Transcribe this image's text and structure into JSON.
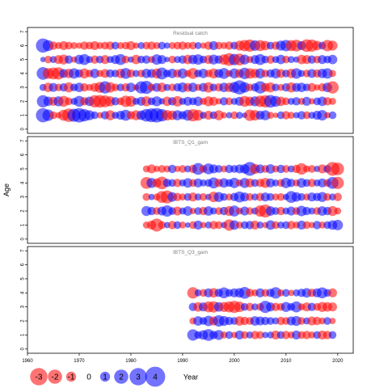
{
  "chart_data": {
    "type": "bubble",
    "ylabel": "Age",
    "xlabel": "Year",
    "xlim": [
      1960,
      2023
    ],
    "xticks": [
      1960,
      1970,
      1980,
      1990,
      2000,
      2010,
      2020
    ],
    "positive_color": "#0000FF",
    "negative_color": "#FF0000",
    "legend": {
      "values": [
        -3,
        -2,
        -1,
        0,
        1,
        2,
        3,
        4
      ],
      "title": "Year"
    },
    "panels": [
      {
        "title": "Residual catch",
        "years": [
          1963,
          2019
        ],
        "ages": [
          1,
          2,
          3,
          4,
          5,
          6
        ],
        "yticks": [
          0,
          1,
          2,
          3,
          4,
          5,
          6,
          7
        ],
        "ylim": [
          -0.3,
          7.3
        ],
        "residuals": {
          "1": [
            2.0,
            1.3,
            -0.6,
            -0.4,
            -1.2,
            -1.8,
            1.7,
            2.1,
            1.5,
            1.0,
            0.6,
            -0.4,
            0.7,
            -1.0,
            0.5,
            0.8,
            1.2,
            -0.7,
            -1.0,
            0.9,
            1.6,
            1.9,
            2.1,
            1.5,
            -1.1,
            -0.9,
            1.0,
            0.7,
            1.2,
            -1.5,
            -1.2,
            0.5,
            -0.8,
            0.6,
            -1.0,
            -0.4,
            0.4,
            -0.6,
            0.5,
            0.3,
            -1.3,
            -1.1,
            0.8,
            1.0,
            -0.5,
            -0.3,
            0.6,
            -0.7,
            -0.5,
            0.4,
            0.7,
            -0.6,
            0.5,
            0.8,
            1.1,
            -0.4,
            0.6
          ],
          "2": [
            1.5,
            0.9,
            -0.8,
            1.0,
            -1.2,
            -0.6,
            0.5,
            1.2,
            -0.7,
            0.9,
            -1.5,
            -1.6,
            -1.4,
            -1.0,
            0.7,
            -0.6,
            -1.3,
            -1.2,
            0.5,
            0.8,
            -1.0,
            0.6,
            1.0,
            0.4,
            -0.9,
            0.7,
            -1.1,
            0.5,
            0.8,
            0.6,
            0.9,
            -0.5,
            -1.0,
            -0.8,
            -0.4,
            0.7,
            -0.6,
            0.5,
            0.8,
            -1.2,
            -0.9,
            1.0,
            -1.3,
            -1.5,
            1.6,
            1.2,
            -0.9,
            -0.6,
            0.5,
            0.7,
            -0.5,
            0.8,
            -0.4,
            0.6,
            0.9,
            -0.7,
            -0.5
          ],
          "3": [
            0.5,
            -0.9,
            0.8,
            -0.6,
            0.7,
            -1.0,
            0.6,
            0.9,
            -0.7,
            -0.5,
            -0.8,
            -1.2,
            1.5,
            -1.1,
            -0.6,
            0.6,
            -0.7,
            0.9,
            -0.4,
            1.5,
            1.7,
            -0.6,
            0.8,
            -0.9,
            0.5,
            -0.6,
            0.7,
            1.0,
            -0.8,
            0.9,
            -0.5,
            0.8,
            -1.1,
            0.6,
            -0.7,
            0.9,
            -0.9,
            1.2,
            2.0,
            1.1,
            -0.6,
            0.7,
            1.5,
            -0.8,
            -1.0,
            0.6,
            -0.5,
            0.7,
            -1.0,
            0.8,
            0.9,
            0.6,
            -0.8,
            -0.4,
            -0.7,
            0.9,
            -1.5
          ],
          "4": [
            1.6,
            -1.2,
            -1.4,
            -1.5,
            0.8,
            -0.9,
            1.1,
            0.7,
            -1.0,
            -0.6,
            0.9,
            -0.5,
            -0.8,
            0.7,
            0.6,
            -0.9,
            1.2,
            -0.7,
            0.5,
            -0.6,
            0.9,
            0.8,
            -1.0,
            1.4,
            0.6,
            0.9,
            -0.7,
            1.0,
            -0.5,
            -1.2,
            0.6,
            0.9,
            -0.6,
            -1.0,
            0.8,
            1.2,
            -0.5,
            1.0,
            -0.8,
            1.3,
            -1.1,
            -0.9,
            1.0,
            -0.6,
            0.7,
            1.0,
            -0.8,
            0.6,
            -0.9,
            1.1,
            0.5,
            -0.6,
            0.8,
            -0.7,
            0.9,
            1.1,
            -0.5
          ],
          "5": [
            0.3,
            -0.6,
            0.5,
            -0.8,
            -1.0,
            0.7,
            -0.4,
            0.9,
            1.2,
            0.5,
            -0.7,
            0.6,
            -0.8,
            0.5,
            0.8,
            1.2,
            -0.6,
            0.4,
            -0.9,
            0.6,
            0.7,
            -0.5,
            1.1,
            0.8,
            0.3,
            -0.6,
            0.5,
            0.7,
            -0.9,
            0.9,
            1.1,
            0.6,
            -0.8,
            1.0,
            0.7,
            -1.1,
            -1.6,
            1.3,
            -1.4,
            1.0,
            -0.5,
            0.8,
            1.2,
            0.6,
            -0.7,
            0.5,
            0.9,
            -0.6,
            0.5,
            0.4,
            -0.9,
            -0.8,
            0.7,
            -0.6,
            0.8,
            0.6,
            0.9
          ],
          "6": [
            2.0,
            1.2,
            -0.7,
            -0.5,
            -0.8,
            -0.6,
            -0.5,
            -0.4,
            -0.7,
            -0.6,
            -0.8,
            -0.5,
            -0.6,
            -0.7,
            0.6,
            -0.5,
            -0.6,
            -0.8,
            -0.4,
            0.5,
            -0.6,
            -0.7,
            -0.5,
            0.6,
            0.4,
            -0.5,
            -0.6,
            -0.7,
            -0.5,
            -0.6,
            0.5,
            -0.4,
            -0.7,
            0.8,
            -0.6,
            -0.5,
            -0.7,
            0.6,
            -1.0,
            -1.3,
            -1.5,
            1.1,
            -1.2,
            -0.9,
            0.6,
            -0.7,
            1.0,
            1.3,
            -1.2,
            -1.4,
            0.8,
            -1.6,
            -1.5,
            -0.9,
            0.6,
            -1.3,
            -1.0
          ]
        }
      },
      {
        "title": "IBTS_Q1_gam",
        "years": [
          1983,
          2020
        ],
        "ages": [
          1,
          2,
          3,
          4,
          5
        ],
        "yticks": [
          0,
          1,
          2,
          3,
          4,
          5,
          6,
          7
        ],
        "ylim": [
          -0.3,
          7.3
        ],
        "residuals": {
          "1": [
            -0.5,
            -0.8,
            -1.7,
            -0.6,
            0.4,
            -0.7,
            0.6,
            -0.5,
            0.3,
            -0.6,
            0.8,
            -0.4,
            0.5,
            -0.7,
            -0.6,
            0.4,
            -1.3,
            0.9,
            -0.5,
            0.6,
            0.7,
            -0.8,
            0.5,
            -0.4,
            0.9,
            -0.6,
            0.5,
            0.6,
            -0.7,
            -0.5,
            0.8,
            -0.6,
            -0.4,
            0.7,
            -0.5,
            0.6,
            0.9,
            1.1
          ],
          "2": [
            1.0,
            0.7,
            -0.6,
            0.8,
            1.3,
            0.6,
            -0.8,
            0.5,
            0.9,
            -0.4,
            0.6,
            -0.7,
            0.9,
            0.5,
            -0.6,
            0.7,
            -1.0,
            1.2,
            -0.5,
            0.8,
            -0.6,
            0.5,
            -1.3,
            -1.7,
            0.9,
            0.6,
            -0.7,
            0.5,
            0.8,
            -0.6,
            1.1,
            0.7,
            0.5,
            -0.6,
            0.9,
            0.7,
            -1.0,
            -0.5
          ],
          "3": [
            -0.6,
            0.4,
            -0.5,
            -1.4,
            -1.7,
            0.9,
            -0.7,
            -0.5,
            0.6,
            -0.8,
            0.5,
            -0.6,
            0.4,
            -1.1,
            1.0,
            0.6,
            -0.5,
            0.7,
            1.2,
            0.8,
            -0.6,
            0.5,
            -0.7,
            0.8,
            0.6,
            -0.5,
            -0.6,
            0.4,
            1.4,
            0.9,
            0.6,
            -0.5,
            0.8,
            0.7,
            1.0,
            -0.6,
            0.5,
            -0.7
          ],
          "4": [
            -1.4,
            1.0,
            -0.8,
            -1.6,
            0.7,
            0.6,
            -0.7,
            0.5,
            0.9,
            -0.6,
            0.8,
            0.5,
            0.6,
            1.2,
            -0.7,
            0.9,
            0.6,
            1.1,
            -0.5,
            1.0,
            -0.8,
            0.6,
            -0.7,
            -1.0,
            0.8,
            0.5,
            -0.6,
            1.1,
            0.7,
            -0.5,
            0.9,
            0.6,
            -0.7,
            0.5,
            0.8,
            -0.6,
            1.4,
            -1.5
          ],
          "5": [
            -0.5,
            -0.8,
            -0.4,
            -0.6,
            -0.5,
            0.7,
            -0.4,
            -0.6,
            0.5,
            -0.7,
            1.4,
            -0.6,
            1.2,
            0.8,
            0.6,
            -0.5,
            0.7,
            0.6,
            0.8,
            0.9,
            1.9,
            -1.0,
            0.8,
            -0.6,
            0.9,
            -0.5,
            0.7,
            -0.6,
            0.5,
            -0.7,
            -1.3,
            -0.5,
            -0.6,
            0.4,
            -0.8,
            0.6,
            -1.9,
            -1.6
          ]
        }
      },
      {
        "title": "IBTS_Q3_gam",
        "years": [
          1992,
          2019
        ],
        "ages": [
          1,
          2,
          3,
          4
        ],
        "yticks": [
          0,
          1,
          2,
          3,
          4,
          5,
          6,
          7
        ],
        "ylim": [
          -0.3,
          7.3
        ],
        "residuals": {
          "1": [
            1.3,
            0.6,
            0.9,
            1.4,
            0.7,
            1.0,
            -0.5,
            0.6,
            -0.4,
            0.8,
            -0.6,
            0.5,
            -0.7,
            -0.6,
            0.4,
            0.5,
            -0.8,
            0.6,
            -0.7,
            -0.5,
            0.8,
            -0.6,
            -0.7,
            -0.5,
            0.6,
            -0.8,
            -0.7,
            0.6
          ],
          "2": [
            -0.5,
            0.9,
            0.6,
            1.1,
            -0.8,
            1.3,
            1.0,
            0.7,
            0.6,
            -0.9,
            -0.7,
            -0.6,
            0.9,
            0.8,
            0.7,
            0.6,
            0.5,
            -0.7,
            -0.6,
            0.8,
            1.0,
            -0.6,
            0.5,
            -0.8,
            -0.7,
            -0.5,
            0.6,
            -0.4
          ],
          "3": [
            0.7,
            -0.9,
            0.8,
            -1.2,
            -1.3,
            0.9,
            -1.0,
            -1.2,
            -1.5,
            -1.1,
            0.6,
            -0.7,
            0.5,
            -0.6,
            1.5,
            0.8,
            -0.7,
            -0.6,
            1.0,
            0.6,
            1.2,
            -0.5,
            -0.8,
            0.7,
            -0.6,
            -1.0,
            -0.9,
            -0.8
          ],
          "4": [
            -1.3,
            0.5,
            -0.6,
            0.8,
            -0.9,
            0.7,
            1.2,
            0.6,
            0.8,
            0.9,
            1.4,
            -0.7,
            -0.5,
            0.8,
            -0.6,
            0.7,
            1.3,
            -0.5,
            0.6,
            -0.4,
            0.5,
            0.7,
            0.9,
            -0.7,
            0.8,
            1.2,
            0.6,
            -0.8
          ]
        }
      }
    ]
  }
}
